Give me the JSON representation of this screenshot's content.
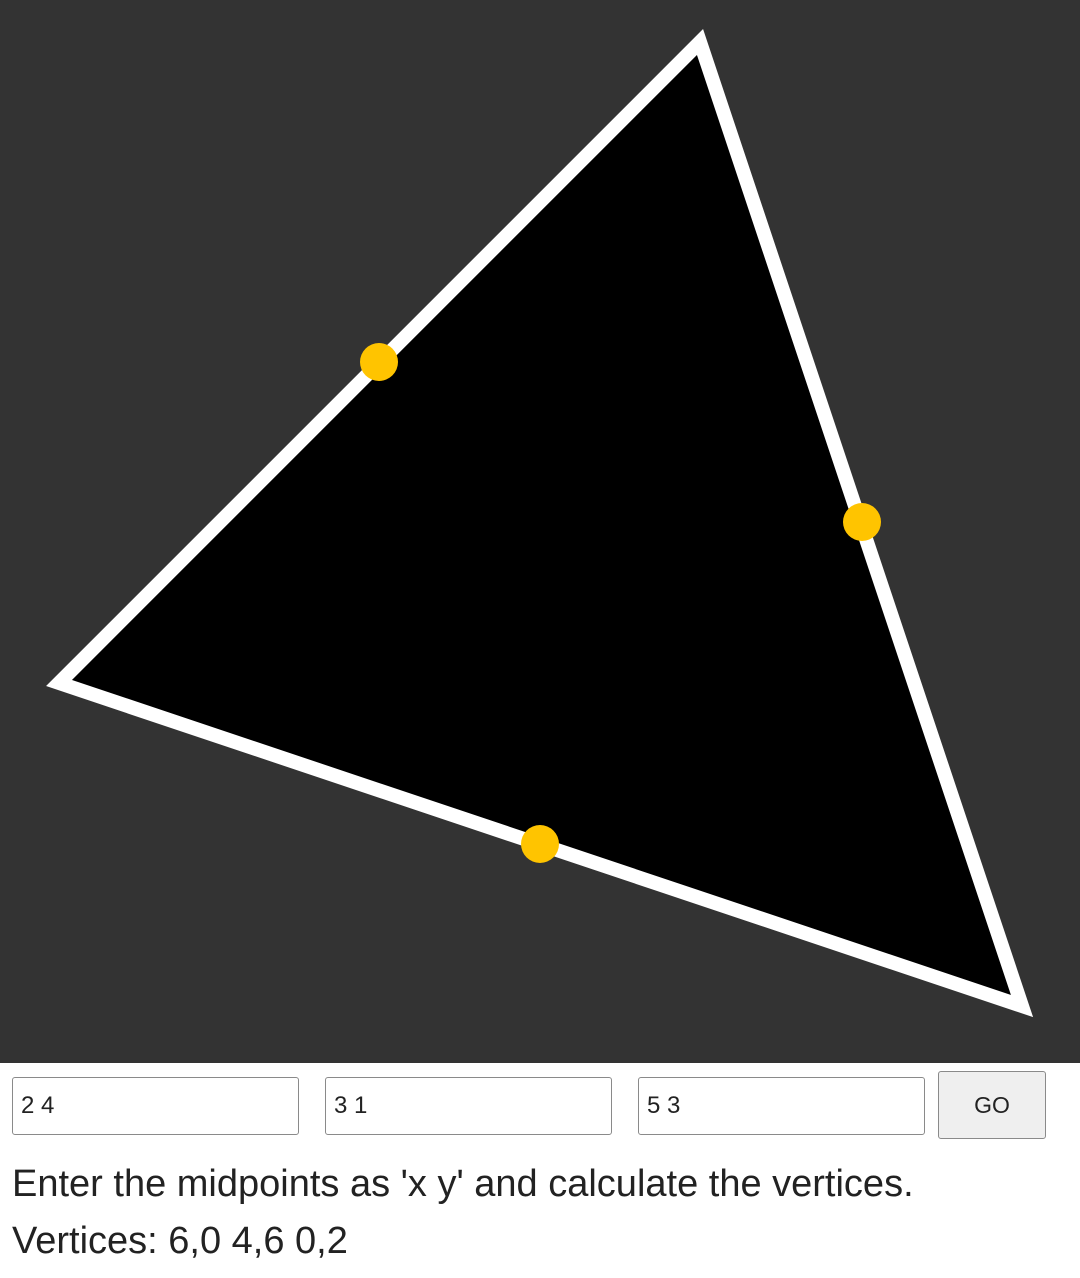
{
  "inputs": [
    {
      "value": "2 4"
    },
    {
      "value": "3 1"
    },
    {
      "value": "5 3"
    }
  ],
  "go_label": "GO",
  "instructions": "Enter the midpoints as 'x y' and calculate the vertices.",
  "result": "Vertices: 6,0 4,6 0,2",
  "colors": {
    "canvas_background": "#333333",
    "triangle_fill": "#000000",
    "triangle_stroke": "#ffffff",
    "midpoint_marker": "#ffc400"
  }
}
